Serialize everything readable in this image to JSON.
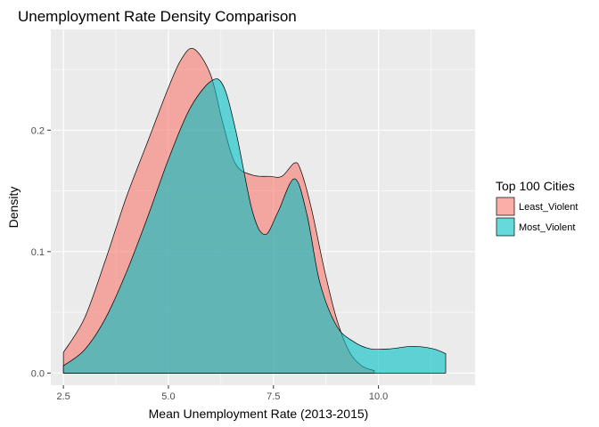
{
  "chart_data": {
    "type": "area",
    "title": "Unemployment Rate Density Comparison",
    "xlabel": "Mean Unemployment Rate (2013-2015)",
    "ylabel": "Density",
    "xlim": [
      2.2,
      12.3
    ],
    "ylim": [
      -0.01,
      0.283
    ],
    "x_ticks": [
      2.5,
      5.0,
      7.5,
      10.0
    ],
    "x_tick_labels": [
      "2.5",
      "5.0",
      "7.5",
      "10.0"
    ],
    "y_ticks": [
      0.0,
      0.1,
      0.2
    ],
    "y_tick_labels": [
      "0.0",
      "0.1",
      "0.2"
    ],
    "grid": true,
    "background": "#ebebeb",
    "legend": {
      "title": "Top 100 Cities",
      "position": "right"
    },
    "series": [
      {
        "name": "Least_Violent",
        "color": "#f8766d",
        "x": [
          2.5,
          3.0,
          3.5,
          4.0,
          4.5,
          5.0,
          5.3,
          5.6,
          6.0,
          6.3,
          6.6,
          7.0,
          7.4,
          7.7,
          8.0,
          8.15,
          8.4,
          8.7,
          9.0,
          9.3,
          9.6,
          9.9
        ],
        "values": [
          0.017,
          0.045,
          0.093,
          0.145,
          0.19,
          0.235,
          0.258,
          0.267,
          0.246,
          0.205,
          0.172,
          0.163,
          0.162,
          0.162,
          0.173,
          0.167,
          0.136,
          0.087,
          0.045,
          0.018,
          0.006,
          0.002
        ]
      },
      {
        "name": "Most_Violent",
        "color": "#00bfc4",
        "x": [
          2.5,
          3.0,
          3.5,
          4.0,
          4.5,
          5.0,
          5.5,
          6.0,
          6.3,
          6.6,
          7.0,
          7.3,
          7.6,
          8.0,
          8.3,
          8.6,
          9.0,
          9.4,
          9.8,
          10.3,
          10.8,
          11.3,
          11.6
        ],
        "values": [
          0.006,
          0.019,
          0.045,
          0.083,
          0.128,
          0.176,
          0.217,
          0.24,
          0.237,
          0.2,
          0.133,
          0.114,
          0.132,
          0.16,
          0.13,
          0.075,
          0.039,
          0.026,
          0.02,
          0.02,
          0.022,
          0.02,
          0.016
        ]
      }
    ]
  }
}
